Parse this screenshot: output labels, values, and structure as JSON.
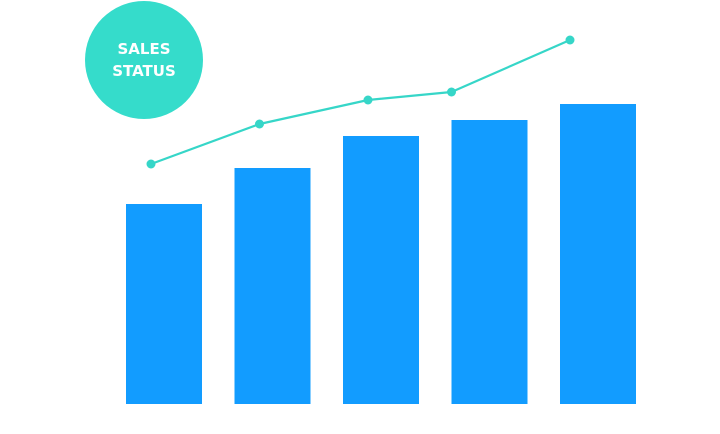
{
  "badge": {
    "line1": "SALES",
    "line2": "STATUS"
  },
  "colors": {
    "bar": "#129cff",
    "line": "#36d6c8",
    "badge": "#35dccb"
  },
  "chart_data": {
    "type": "bar",
    "title": "",
    "xlabel": "",
    "ylabel": "",
    "categories": [
      "",
      "",
      "",
      "",
      ""
    ],
    "ylim": [
      0,
      100
    ],
    "series": [
      {
        "type": "bar",
        "values": [
          50,
          59,
          67,
          71,
          75
        ]
      },
      {
        "type": "line",
        "values": [
          60,
          70,
          76,
          78,
          91
        ]
      }
    ],
    "grid": false,
    "legend": "none"
  }
}
